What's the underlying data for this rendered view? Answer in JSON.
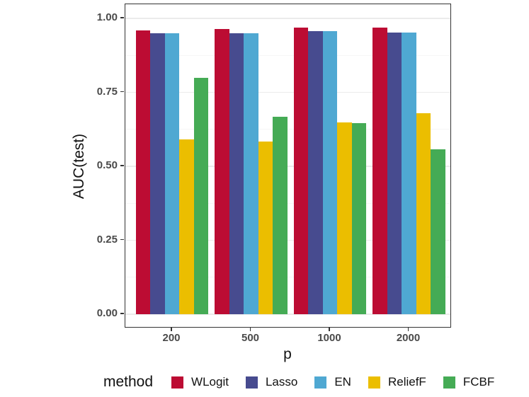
{
  "chart_data": {
    "type": "bar",
    "title": "",
    "xlabel": "p",
    "ylabel": "AUC(test)",
    "legend_title": "method",
    "legend_position": "bottom",
    "grid": true,
    "categories": [
      "200",
      "500",
      "1000",
      "2000"
    ],
    "series": [
      {
        "name": "WLogit",
        "color": "#BC0C33",
        "values": [
          0.96,
          0.965,
          0.97,
          0.97
        ]
      },
      {
        "name": "Lasso",
        "color": "#474B8F",
        "values": [
          0.95,
          0.95,
          0.957,
          0.952
        ]
      },
      {
        "name": "EN",
        "color": "#4FA8D2",
        "values": [
          0.95,
          0.95,
          0.956,
          0.952
        ]
      },
      {
        "name": "ReliefF",
        "color": "#EBBE00",
        "values": [
          0.592,
          0.583,
          0.649,
          0.68
        ]
      },
      {
        "name": "FCBF",
        "color": "#45AB55",
        "values": [
          0.798,
          0.668,
          0.647,
          0.558
        ]
      }
    ],
    "ylim": [
      0.0,
      1.0
    ],
    "yticks": [
      0.0,
      0.25,
      0.5,
      0.75,
      1.0
    ],
    "ytick_labels": [
      "0.00",
      "0.25",
      "0.50",
      "0.75",
      "1.00"
    ],
    "minor_gridlines": [
      0.125,
      0.375,
      0.625,
      0.875
    ],
    "colors": {
      "panel_border": "#333333",
      "major_grid": "#ebebeb",
      "minor_grid": "#f6f6f6",
      "tick_text": "#4a4a4a",
      "title_text": "#111111"
    }
  }
}
